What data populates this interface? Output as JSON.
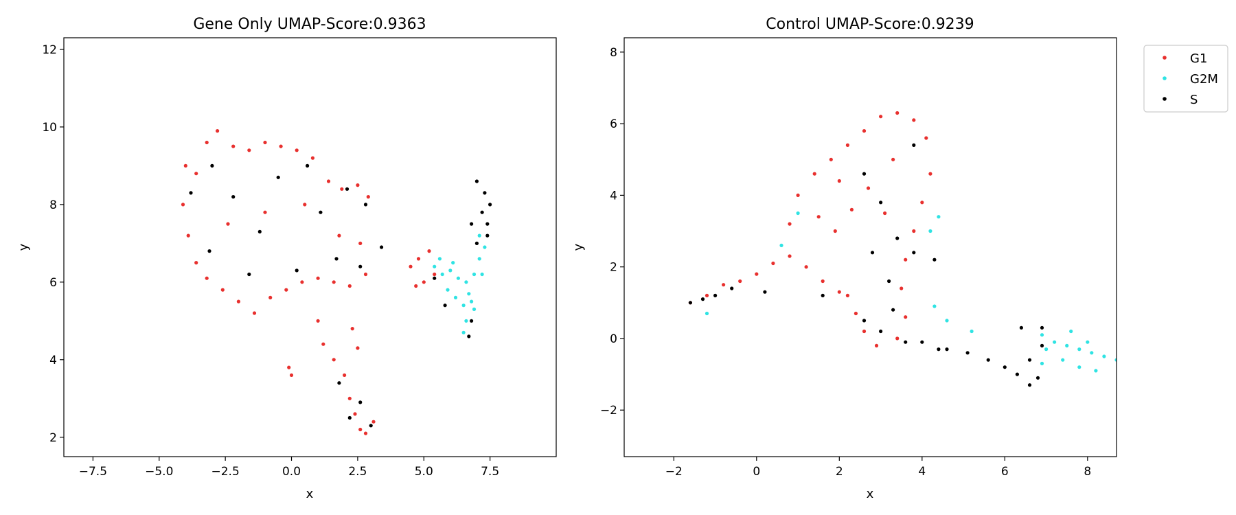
{
  "legend": {
    "placement": "outside-right-top",
    "entries": [
      {
        "label": "G1",
        "color": "#e8302e"
      },
      {
        "label": "G2M",
        "color": "#2fe3e3"
      },
      {
        "label": "S",
        "color": "#000000"
      }
    ]
  },
  "chart_data": [
    {
      "type": "scatter",
      "title": "Gene Only UMAP-Score:0.9363",
      "xlabel": "x",
      "ylabel": "y",
      "xlim": [
        -8.6,
        10.0
      ],
      "ylim": [
        1.5,
        12.3
      ],
      "xticks": [
        "−7.5",
        "−5.0",
        "−2.5",
        "0.0",
        "2.5",
        "5.0",
        "7.5"
      ],
      "xtick_values": [
        -7.5,
        -5.0,
        -2.5,
        0.0,
        2.5,
        5.0,
        7.5
      ],
      "yticks": [
        "2",
        "4",
        "6",
        "8",
        "10",
        "12"
      ],
      "ytick_values": [
        2,
        4,
        6,
        8,
        10,
        12
      ],
      "grid": false,
      "series": [
        {
          "name": "G1",
          "color": "#e8302e",
          "points": [
            [
              -4.0,
              9.0
            ],
            [
              -3.6,
              8.8
            ],
            [
              -3.2,
              9.6
            ],
            [
              -2.8,
              9.9
            ],
            [
              -2.2,
              9.5
            ],
            [
              -1.6,
              9.4
            ],
            [
              -1.0,
              9.6
            ],
            [
              -0.4,
              9.5
            ],
            [
              0.2,
              9.4
            ],
            [
              0.8,
              9.2
            ],
            [
              1.4,
              8.6
            ],
            [
              1.9,
              8.4
            ],
            [
              2.5,
              8.5
            ],
            [
              2.9,
              8.2
            ],
            [
              -4.1,
              8.0
            ],
            [
              -3.9,
              7.2
            ],
            [
              -3.6,
              6.5
            ],
            [
              -3.2,
              6.1
            ],
            [
              -2.6,
              5.8
            ],
            [
              -2.0,
              5.5
            ],
            [
              -1.4,
              5.2
            ],
            [
              -0.8,
              5.6
            ],
            [
              -0.2,
              5.8
            ],
            [
              0.4,
              6.0
            ],
            [
              1.0,
              6.1
            ],
            [
              1.6,
              6.0
            ],
            [
              2.2,
              5.9
            ],
            [
              2.8,
              6.2
            ],
            [
              -2.4,
              7.5
            ],
            [
              -1.0,
              7.8
            ],
            [
              0.5,
              8.0
            ],
            [
              1.8,
              7.2
            ],
            [
              2.6,
              7.0
            ],
            [
              1.0,
              5.0
            ],
            [
              1.2,
              4.4
            ],
            [
              1.6,
              4.0
            ],
            [
              2.0,
              3.6
            ],
            [
              2.2,
              3.0
            ],
            [
              2.4,
              2.6
            ],
            [
              2.6,
              2.2
            ],
            [
              2.8,
              2.1
            ],
            [
              3.1,
              2.4
            ],
            [
              2.3,
              4.8
            ],
            [
              2.5,
              4.3
            ],
            [
              -0.1,
              3.8
            ],
            [
              0.0,
              3.6
            ],
            [
              4.5,
              6.4
            ],
            [
              4.8,
              6.6
            ],
            [
              5.2,
              6.8
            ],
            [
              4.7,
              5.9
            ],
            [
              5.0,
              6.0
            ],
            [
              5.4,
              6.2
            ]
          ]
        },
        {
          "name": "G2M",
          "color": "#2fe3e3",
          "points": [
            [
              5.4,
              6.4
            ],
            [
              5.7,
              6.2
            ],
            [
              6.0,
              6.3
            ],
            [
              6.3,
              6.1
            ],
            [
              6.6,
              6.0
            ],
            [
              6.9,
              6.2
            ],
            [
              7.1,
              6.6
            ],
            [
              7.3,
              6.9
            ],
            [
              5.9,
              5.8
            ],
            [
              6.2,
              5.6
            ],
            [
              6.5,
              5.4
            ],
            [
              6.8,
              5.5
            ],
            [
              6.6,
              5.0
            ],
            [
              6.5,
              4.7
            ],
            [
              6.9,
              5.3
            ],
            [
              7.2,
              6.2
            ],
            [
              7.1,
              7.2
            ],
            [
              5.6,
              6.6
            ],
            [
              6.1,
              6.5
            ],
            [
              6.7,
              5.7
            ]
          ]
        },
        {
          "name": "S",
          "color": "#000000",
          "points": [
            [
              -3.8,
              8.3
            ],
            [
              -3.0,
              9.0
            ],
            [
              -2.2,
              8.2
            ],
            [
              -1.2,
              7.3
            ],
            [
              -0.5,
              8.7
            ],
            [
              0.6,
              9.0
            ],
            [
              1.1,
              7.8
            ],
            [
              2.1,
              8.4
            ],
            [
              2.8,
              8.0
            ],
            [
              -3.1,
              6.8
            ],
            [
              -1.6,
              6.2
            ],
            [
              0.2,
              6.3
            ],
            [
              1.7,
              6.6
            ],
            [
              2.6,
              6.4
            ],
            [
              3.4,
              6.9
            ],
            [
              2.2,
              2.5
            ],
            [
              2.6,
              2.9
            ],
            [
              3.0,
              2.3
            ],
            [
              1.8,
              3.4
            ],
            [
              7.0,
              8.6
            ],
            [
              7.3,
              8.3
            ],
            [
              7.5,
              8.0
            ],
            [
              7.2,
              7.8
            ],
            [
              6.8,
              7.5
            ],
            [
              7.4,
              7.5
            ],
            [
              7.4,
              7.2
            ],
            [
              7.0,
              7.0
            ],
            [
              6.8,
              5.0
            ],
            [
              6.7,
              4.6
            ],
            [
              5.4,
              6.1
            ],
            [
              5.8,
              5.4
            ]
          ]
        }
      ]
    },
    {
      "type": "scatter",
      "title": "Control UMAP-Score:0.9239",
      "xlabel": "x",
      "ylabel": "y",
      "xlim": [
        -3.2,
        8.7
      ],
      "ylim": [
        -3.3,
        8.4
      ],
      "xticks": [
        "−2",
        "0",
        "2",
        "4",
        "6",
        "8"
      ],
      "xtick_values": [
        -2,
        0,
        2,
        4,
        6,
        8
      ],
      "yticks": [
        "−2",
        "0",
        "2",
        "4",
        "6",
        "8"
      ],
      "ytick_values": [
        -2,
        0,
        2,
        4,
        6,
        8
      ],
      "grid": false,
      "series": [
        {
          "name": "G1",
          "color": "#e8302e",
          "points": [
            [
              -1.6,
              1.0
            ],
            [
              -1.2,
              1.2
            ],
            [
              -0.8,
              1.5
            ],
            [
              -0.4,
              1.6
            ],
            [
              0.0,
              1.8
            ],
            [
              0.4,
              2.1
            ],
            [
              0.8,
              2.3
            ],
            [
              1.2,
              2.0
            ],
            [
              1.6,
              1.6
            ],
            [
              2.0,
              1.3
            ],
            [
              0.8,
              3.2
            ],
            [
              1.0,
              4.0
            ],
            [
              1.4,
              4.6
            ],
            [
              1.8,
              5.0
            ],
            [
              2.2,
              5.4
            ],
            [
              2.6,
              5.8
            ],
            [
              3.0,
              6.2
            ],
            [
              3.4,
              6.3
            ],
            [
              3.8,
              6.1
            ],
            [
              4.1,
              5.6
            ],
            [
              4.2,
              4.6
            ],
            [
              4.0,
              3.8
            ],
            [
              3.8,
              3.0
            ],
            [
              3.6,
              2.2
            ],
            [
              3.5,
              1.4
            ],
            [
              3.6,
              0.6
            ],
            [
              3.4,
              0.0
            ],
            [
              2.9,
              -0.2
            ],
            [
              2.6,
              0.2
            ],
            [
              2.4,
              0.7
            ],
            [
              2.2,
              1.2
            ],
            [
              1.9,
              3.0
            ],
            [
              2.3,
              3.6
            ],
            [
              2.7,
              4.2
            ],
            [
              3.1,
              3.5
            ],
            [
              1.5,
              3.4
            ],
            [
              3.3,
              5.0
            ],
            [
              2.0,
              4.4
            ]
          ]
        },
        {
          "name": "G2M",
          "color": "#2fe3e3",
          "points": [
            [
              6.9,
              0.1
            ],
            [
              7.2,
              -0.1
            ],
            [
              7.5,
              -0.2
            ],
            [
              7.8,
              -0.3
            ],
            [
              8.1,
              -0.4
            ],
            [
              8.4,
              -0.5
            ],
            [
              8.7,
              -0.6
            ],
            [
              7.4,
              -0.6
            ],
            [
              7.8,
              -0.8
            ],
            [
              8.2,
              -0.9
            ],
            [
              7.0,
              -0.3
            ],
            [
              6.9,
              -0.7
            ],
            [
              7.6,
              0.2
            ],
            [
              8.0,
              -0.1
            ],
            [
              4.6,
              0.5
            ],
            [
              4.3,
              0.9
            ],
            [
              5.2,
              0.2
            ],
            [
              4.4,
              3.4
            ],
            [
              4.2,
              3.0
            ],
            [
              -1.2,
              0.7
            ],
            [
              0.6,
              2.6
            ],
            [
              1.0,
              3.5
            ]
          ]
        },
        {
          "name": "S",
          "color": "#000000",
          "points": [
            [
              -1.6,
              1.0
            ],
            [
              -1.3,
              1.1
            ],
            [
              -1.0,
              1.2
            ],
            [
              -0.6,
              1.4
            ],
            [
              0.2,
              1.3
            ],
            [
              1.6,
              1.2
            ],
            [
              2.6,
              0.5
            ],
            [
              3.0,
              0.2
            ],
            [
              3.3,
              0.8
            ],
            [
              3.6,
              -0.1
            ],
            [
              4.0,
              -0.1
            ],
            [
              4.4,
              -0.3
            ],
            [
              3.2,
              1.6
            ],
            [
              2.8,
              2.4
            ],
            [
              3.4,
              2.8
            ],
            [
              3.0,
              3.8
            ],
            [
              2.6,
              4.6
            ],
            [
              3.8,
              5.4
            ],
            [
              3.8,
              2.4
            ],
            [
              4.3,
              2.2
            ],
            [
              5.6,
              -0.6
            ],
            [
              6.0,
              -0.8
            ],
            [
              6.3,
              -1.0
            ],
            [
              6.6,
              -1.3
            ],
            [
              6.8,
              -1.1
            ],
            [
              6.6,
              -0.6
            ],
            [
              6.9,
              -0.2
            ],
            [
              6.9,
              0.3
            ],
            [
              6.4,
              0.3
            ],
            [
              4.6,
              -0.3
            ],
            [
              5.1,
              -0.4
            ]
          ]
        }
      ]
    }
  ]
}
